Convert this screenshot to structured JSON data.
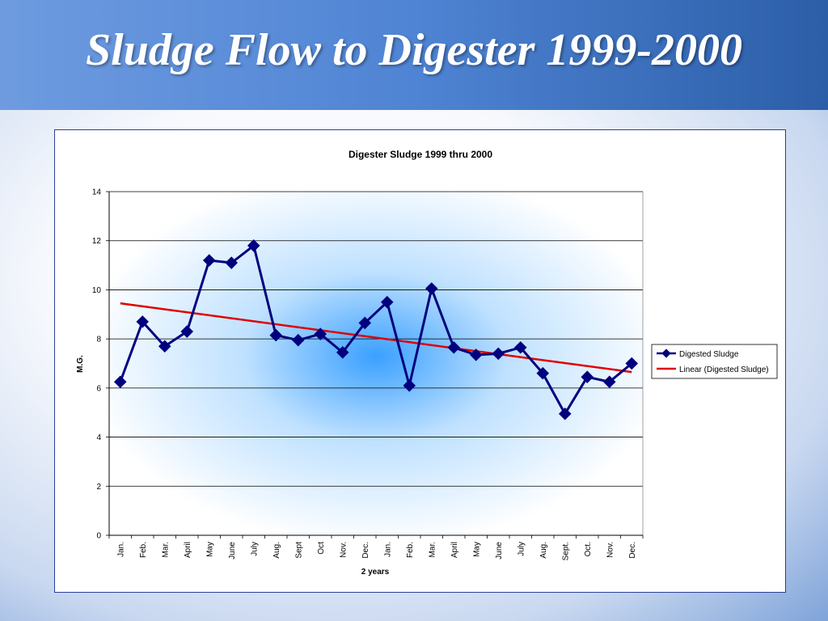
{
  "slide": {
    "title": "Sludge Flow to Digester 1999-2000"
  },
  "colors": {
    "series": "#00007f",
    "trend": "#e00000",
    "frame": "#2a3f9a"
  },
  "chart_data": {
    "type": "line",
    "title": "Digester Sludge 1999 thru 2000",
    "xlabel": "2 years",
    "ylabel": "M.G.",
    "ylim": [
      0,
      14
    ],
    "yticks": [
      0,
      2,
      4,
      6,
      8,
      10,
      12,
      14
    ],
    "grid": true,
    "legend_position": "right",
    "categories": [
      "Jan.",
      "Feb.",
      "Mar.",
      "April",
      "May",
      "June",
      "July",
      "Aug.",
      "Sept",
      "Oct",
      "Nov.",
      "Dec.",
      "Jan.",
      "Feb.",
      "Mar.",
      "April",
      "May",
      "June",
      "July",
      "Aug.",
      "Sept.",
      "Oct.",
      "Nov.",
      "Dec."
    ],
    "series": [
      {
        "name": "Digested Sludge",
        "values": [
          6.25,
          8.7,
          7.7,
          8.3,
          11.2,
          11.1,
          11.8,
          8.15,
          7.95,
          8.2,
          7.45,
          8.65,
          9.5,
          6.1,
          10.05,
          7.65,
          7.35,
          7.4,
          7.65,
          6.6,
          4.95,
          6.45,
          6.25,
          7.0
        ]
      }
    ],
    "trendline": {
      "name": "Linear (Digested Sludge)",
      "start": 9.45,
      "end": 6.65
    }
  }
}
